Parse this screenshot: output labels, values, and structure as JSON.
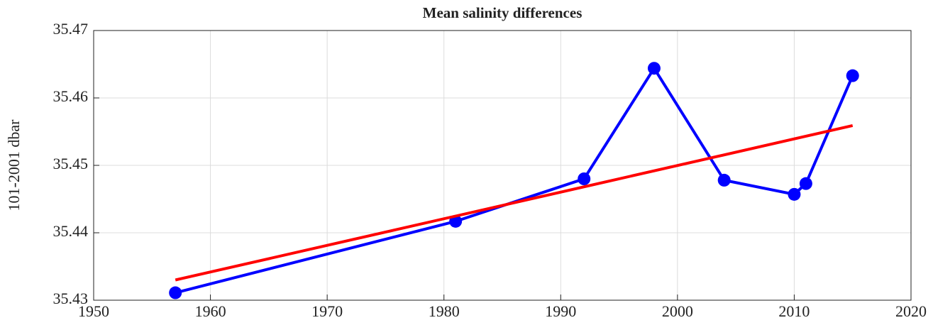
{
  "chart_data": {
    "type": "line",
    "title": "Mean salinity differences",
    "ylabel": "101-2001 dbar",
    "series": [
      {
        "color": "#0000ff",
        "marker": true,
        "x": [
          1957,
          1981,
          1992,
          1998,
          2004,
          2010,
          2011,
          2015
        ],
        "values": [
          35.4311,
          35.4417,
          35.448,
          35.4644,
          35.4478,
          35.4457,
          35.4473,
          35.4633
        ]
      },
      {
        "color": "#ff0000",
        "marker": false,
        "x": [
          1957,
          2015
        ],
        "values": [
          35.433,
          35.4559
        ]
      }
    ],
    "xlim": [
      1950,
      2020
    ],
    "xticks": [
      1950,
      1960,
      1970,
      1980,
      1990,
      2000,
      2010,
      2020
    ],
    "ylim": [
      35.43,
      35.47
    ],
    "yticks": [
      35.43,
      35.44,
      35.45,
      35.46,
      35.47
    ],
    "grid": true
  }
}
